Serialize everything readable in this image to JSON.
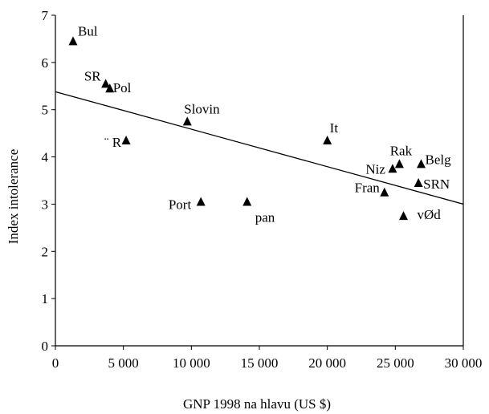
{
  "chart_data": {
    "type": "scatter",
    "title": "",
    "xlabel": "GNP 1998 na hlavu (US $)",
    "ylabel": "Index intolerance",
    "xlim": [
      0,
      30000
    ],
    "ylim": [
      0,
      7
    ],
    "xticks": [
      0,
      5000,
      10000,
      15000,
      20000,
      25000,
      30000
    ],
    "xtick_labels": [
      "0",
      "5 000",
      "10 000",
      "15 000",
      "20 000",
      "25 000",
      "30 000"
    ],
    "yticks": [
      0,
      1,
      2,
      3,
      4,
      5,
      6,
      7
    ],
    "ytick_labels": [
      "0",
      "1",
      "2",
      "3",
      "4",
      "5",
      "6",
      "7"
    ],
    "grid": false,
    "legend": "none",
    "marker": "triangle",
    "points": [
      {
        "label": "Bul",
        "x": 1300,
        "y": 6.45
      },
      {
        "label": "SR",
        "x": 3700,
        "y": 5.55
      },
      {
        "label": "Pol",
        "x": 4000,
        "y": 5.45
      },
      {
        "label": "Slovin",
        "x": 9700,
        "y": 4.75
      },
      {
        "label": "¨ R",
        "x": 5200,
        "y": 4.35
      },
      {
        "label": "It",
        "x": 20000,
        "y": 4.35
      },
      {
        "label": "Rak",
        "x": 25300,
        "y": 3.85
      },
      {
        "label": "Belg",
        "x": 26900,
        "y": 3.85
      },
      {
        "label": "Niz",
        "x": 24800,
        "y": 3.75
      },
      {
        "label": "SRN",
        "x": 26700,
        "y": 3.45
      },
      {
        "label": "Fran",
        "x": 24200,
        "y": 3.25
      },
      {
        "label": "Port",
        "x": 10700,
        "y": 3.05
      },
      {
        "label": "pan",
        "x": 14100,
        "y": 3.05
      },
      {
        "label": "vØd",
        "x": 25600,
        "y": 2.75
      }
    ],
    "trendline": {
      "x": [
        0,
        30000
      ],
      "y": [
        5.38,
        3.0
      ]
    }
  }
}
